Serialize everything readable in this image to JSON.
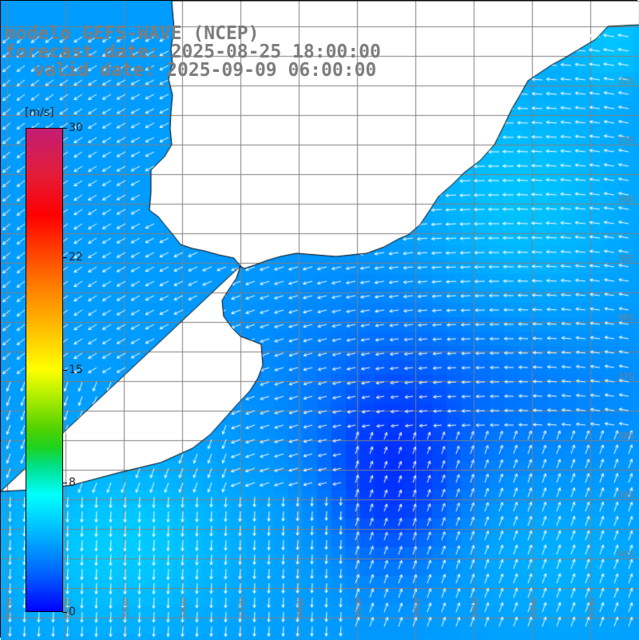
{
  "titles": {
    "line1": "modelo GEFS-WAVE (NCEP)",
    "line2": "forecast date: 2025-08-25 18:00:00",
    "line3": "valid date: 2025-09-09 06:00:00"
  },
  "colorbar": {
    "unit": "[m/s]",
    "min": 0,
    "max": 30,
    "ticks": [
      {
        "label": "30",
        "value": 30
      },
      {
        "label": "22",
        "value": 22
      },
      {
        "label": "15",
        "value": 15
      },
      {
        "label": "8",
        "value": 8
      },
      {
        "label": "0",
        "value": 0
      }
    ],
    "colors": [
      "#0000ff",
      "#0064ff",
      "#00b4ff",
      "#00ffff",
      "#00e08c",
      "#1ed21e",
      "#55d200",
      "#b6f000",
      "#ffff00",
      "#ffb300",
      "#ff7f00",
      "#ff3c00",
      "#ff0000",
      "#e11d3c",
      "#c21d74"
    ]
  },
  "lat_labels": [
    "32S",
    "33S",
    "34S",
    "35S",
    "36S",
    "37S",
    "38S",
    "39S",
    "40S"
  ],
  "lon_labels": [
    "61W",
    "60W",
    "59W",
    "58W",
    "57W",
    "56W",
    "55W",
    "54W",
    "53W",
    "52W",
    "51W"
  ],
  "colors": {
    "land": "#ffffff",
    "coastline": "#000000",
    "grid": "#808080",
    "arrow": "#ffffff",
    "title_text": "#7d7d7d"
  }
}
